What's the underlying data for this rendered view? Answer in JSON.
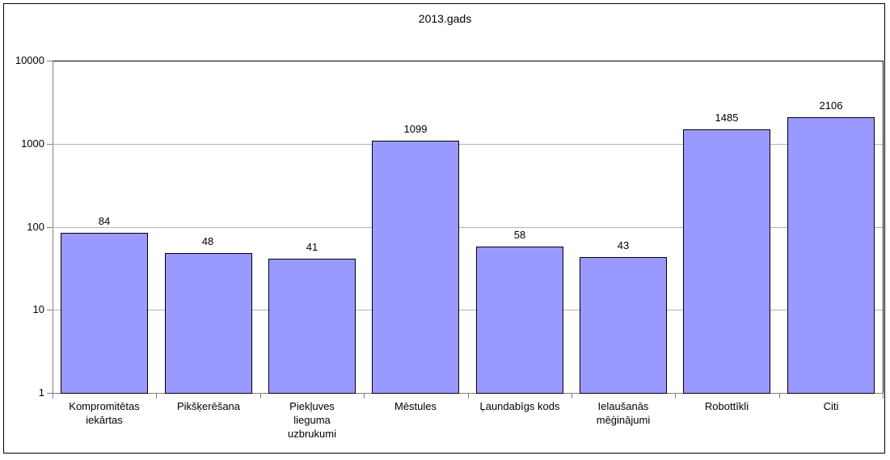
{
  "chart_data": {
    "type": "bar",
    "title": "2013.gads",
    "categories": [
      "Kompromitētas iekārtas",
      "Pikšķerēšana",
      "Piekļuves lieguma uzbrukumi",
      "Mēstules",
      "Ļaundabīgs kods",
      "Ielaušanās mēģinājumi",
      "Robottīkli",
      "Citi"
    ],
    "category_label_lines": [
      [
        "Kompromitētas",
        "iekārtas"
      ],
      [
        "Pikšķerēšana"
      ],
      [
        "Piekļuves",
        "lieguma",
        "uzbrukumi"
      ],
      [
        "Mēstules"
      ],
      [
        "Ļaundabīgs kods"
      ],
      [
        "Ielaušanās",
        "mēģinājumi"
      ],
      [
        "Robottīkli"
      ],
      [
        "Citi"
      ]
    ],
    "values": [
      84,
      48,
      41,
      1099,
      58,
      43,
      1485,
      2106
    ],
    "value_labels": [
      "84",
      "48",
      "41",
      "1099",
      "58",
      "43",
      "1485",
      "2106"
    ],
    "xlabel": "",
    "ylabel": "",
    "y_scale": "log10",
    "ylim": [
      1,
      10000
    ],
    "yticks": [
      1,
      10,
      100,
      1000,
      10000
    ],
    "ytick_labels": [
      "1",
      "10",
      "100",
      "1000",
      "10000"
    ],
    "grid": true,
    "legend": "none",
    "colors": {
      "bar_fill": "#9999FF",
      "bar_border": "#000000",
      "gridline": "#B3B3B3",
      "axis_line": "#808080",
      "plot_border": "#000000",
      "text": "#000000",
      "background": "#FFFFFF"
    }
  }
}
